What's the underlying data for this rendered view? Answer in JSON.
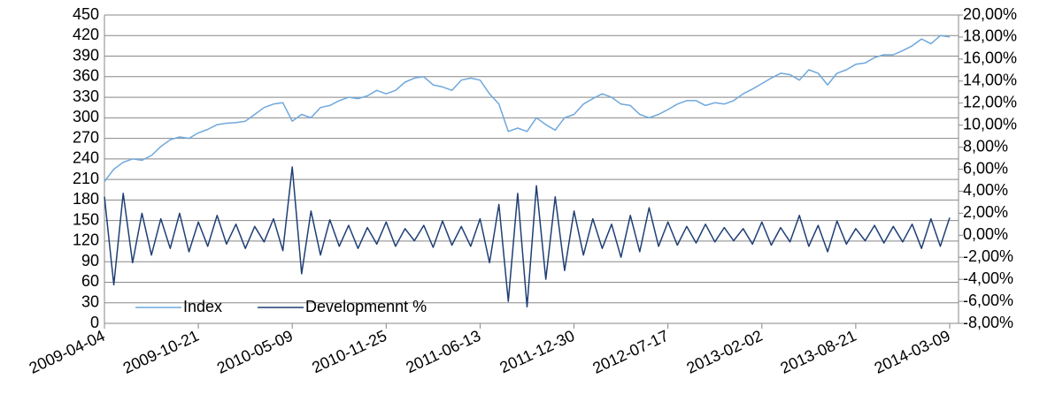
{
  "chart_data": {
    "type": "line",
    "categories": [
      "2009-04-04",
      null,
      null,
      null,
      null,
      null,
      null,
      null,
      null,
      null,
      "2009-10-21",
      null,
      null,
      null,
      null,
      null,
      null,
      null,
      null,
      null,
      "2010-05-09",
      null,
      null,
      null,
      null,
      null,
      null,
      null,
      null,
      null,
      "2010-11-25",
      null,
      null,
      null,
      null,
      null,
      null,
      null,
      null,
      null,
      "2011-06-13",
      null,
      null,
      null,
      null,
      null,
      null,
      null,
      null,
      null,
      "2011-12-30",
      null,
      null,
      null,
      null,
      null,
      null,
      null,
      null,
      null,
      "2012-07-17",
      null,
      null,
      null,
      null,
      null,
      null,
      null,
      null,
      null,
      "2013-02-02",
      null,
      null,
      null,
      null,
      null,
      null,
      null,
      null,
      null,
      "2013-08-21",
      null,
      null,
      null,
      null,
      null,
      null,
      null,
      null,
      null,
      "2014-03-09"
    ],
    "series": [
      {
        "name": "Index",
        "color": "#6fa8dc",
        "axis": "y",
        "values": [
          207,
          225,
          235,
          240,
          238,
          245,
          258,
          268,
          272,
          270,
          278,
          283,
          290,
          292,
          293,
          295,
          305,
          315,
          320,
          322,
          295,
          305,
          300,
          315,
          318,
          325,
          330,
          328,
          332,
          340,
          335,
          340,
          352,
          358,
          360,
          348,
          345,
          340,
          355,
          358,
          355,
          335,
          320,
          280,
          285,
          280,
          300,
          290,
          282,
          300,
          305,
          320,
          328,
          335,
          330,
          320,
          318,
          305,
          300,
          305,
          312,
          320,
          325,
          325,
          318,
          322,
          320,
          325,
          335,
          342,
          350,
          358,
          365,
          363,
          355,
          370,
          365,
          348,
          365,
          370,
          378,
          380,
          388,
          392,
          392,
          398,
          405,
          415,
          408,
          420,
          418
        ]
      },
      {
        "name": "Developmennt %",
        "color": "#1f3f75",
        "axis": "y2",
        "values": [
          3.5,
          -4.5,
          3.8,
          -2.5,
          2.0,
          -1.8,
          1.5,
          -1.2,
          2.0,
          -1.5,
          1.2,
          -1.0,
          1.8,
          -0.8,
          1.0,
          -1.2,
          0.8,
          -0.6,
          1.5,
          -1.4,
          6.2,
          -3.5,
          2.2,
          -1.8,
          1.4,
          -1.0,
          0.9,
          -1.2,
          0.7,
          -0.8,
          1.2,
          -1.0,
          0.6,
          -0.5,
          0.9,
          -1.1,
          1.3,
          -0.9,
          0.8,
          -1.0,
          1.5,
          -2.5,
          2.8,
          -6.0,
          3.8,
          -6.5,
          4.5,
          -4.0,
          3.5,
          -3.2,
          2.2,
          -1.8,
          1.5,
          -1.2,
          1.0,
          -2.0,
          1.8,
          -1.5,
          2.5,
          -1.0,
          1.2,
          -0.9,
          0.8,
          -0.7,
          1.0,
          -0.6,
          0.7,
          -0.5,
          0.6,
          -0.8,
          1.2,
          -0.9,
          0.7,
          -0.6,
          1.8,
          -1.0,
          0.9,
          -1.5,
          1.3,
          -0.8,
          0.6,
          -0.5,
          0.9,
          -0.7,
          0.8,
          -0.6,
          1.0,
          -1.2,
          1.5,
          -1.0,
          1.6
        ]
      }
    ],
    "ylim": [
      0,
      450
    ],
    "yticks": [
      0,
      30,
      60,
      90,
      120,
      150,
      180,
      210,
      240,
      270,
      300,
      330,
      360,
      390,
      420,
      450
    ],
    "y2lim": [
      -8,
      20
    ],
    "y2ticks": [
      {
        "value": -8,
        "label": "-8,00%"
      },
      {
        "value": -6,
        "label": "-6,00%"
      },
      {
        "value": -4,
        "label": "-4,00%"
      },
      {
        "value": -2,
        "label": "-2,00%"
      },
      {
        "value": 0,
        "label": "0,00%"
      },
      {
        "value": 2,
        "label": "2,00%"
      },
      {
        "value": 4,
        "label": "4,00%"
      },
      {
        "value": 6,
        "label": "6,00%"
      },
      {
        "value": 8,
        "label": "8,00%"
      },
      {
        "value": 10,
        "label": "10,00%"
      },
      {
        "value": 12,
        "label": "12,00%"
      },
      {
        "value": 14,
        "label": "14,00%"
      },
      {
        "value": 16,
        "label": "16,00%"
      },
      {
        "value": 18,
        "label": "18,00%"
      },
      {
        "value": 20,
        "label": "20,00%"
      }
    ],
    "grid": true,
    "legend": "bottom-left"
  }
}
